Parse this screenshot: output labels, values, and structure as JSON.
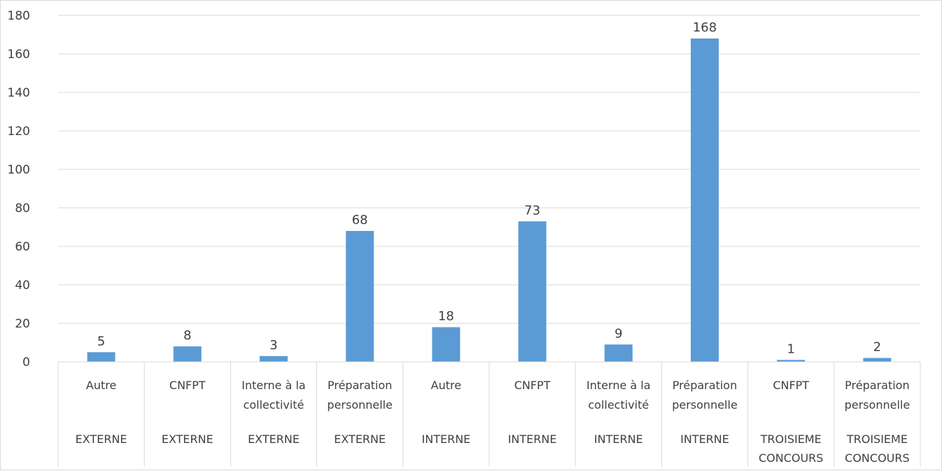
{
  "chart_data": {
    "type": "bar",
    "title": "",
    "xlabel": "",
    "ylabel": "",
    "ylim": [
      0,
      180
    ],
    "yticks": [
      0,
      20,
      40,
      60,
      80,
      100,
      120,
      140,
      160,
      180
    ],
    "grid": true,
    "legend": "none",
    "bar_color": "#5b9bd5",
    "categories": [
      {
        "label": [
          "Autre"
        ],
        "group": [
          "EXTERNE"
        ]
      },
      {
        "label": [
          "CNFPT"
        ],
        "group": [
          "EXTERNE"
        ]
      },
      {
        "label": [
          "Interne à la",
          "collectivité"
        ],
        "group": [
          "EXTERNE"
        ]
      },
      {
        "label": [
          "Préparation",
          "personnelle"
        ],
        "group": [
          "EXTERNE"
        ]
      },
      {
        "label": [
          "Autre"
        ],
        "group": [
          "INTERNE"
        ]
      },
      {
        "label": [
          "CNFPT"
        ],
        "group": [
          "INTERNE"
        ]
      },
      {
        "label": [
          "Interne à la",
          "collectivité"
        ],
        "group": [
          "INTERNE"
        ]
      },
      {
        "label": [
          "Préparation",
          "personnelle"
        ],
        "group": [
          "INTERNE"
        ]
      },
      {
        "label": [
          "CNFPT"
        ],
        "group": [
          "TROISIEME",
          "CONCOURS"
        ]
      },
      {
        "label": [
          "Préparation",
          "personnelle"
        ],
        "group": [
          "TROISIEME",
          "CONCOURS"
        ]
      }
    ],
    "values": [
      5,
      8,
      3,
      68,
      18,
      73,
      9,
      168,
      1,
      2
    ]
  }
}
